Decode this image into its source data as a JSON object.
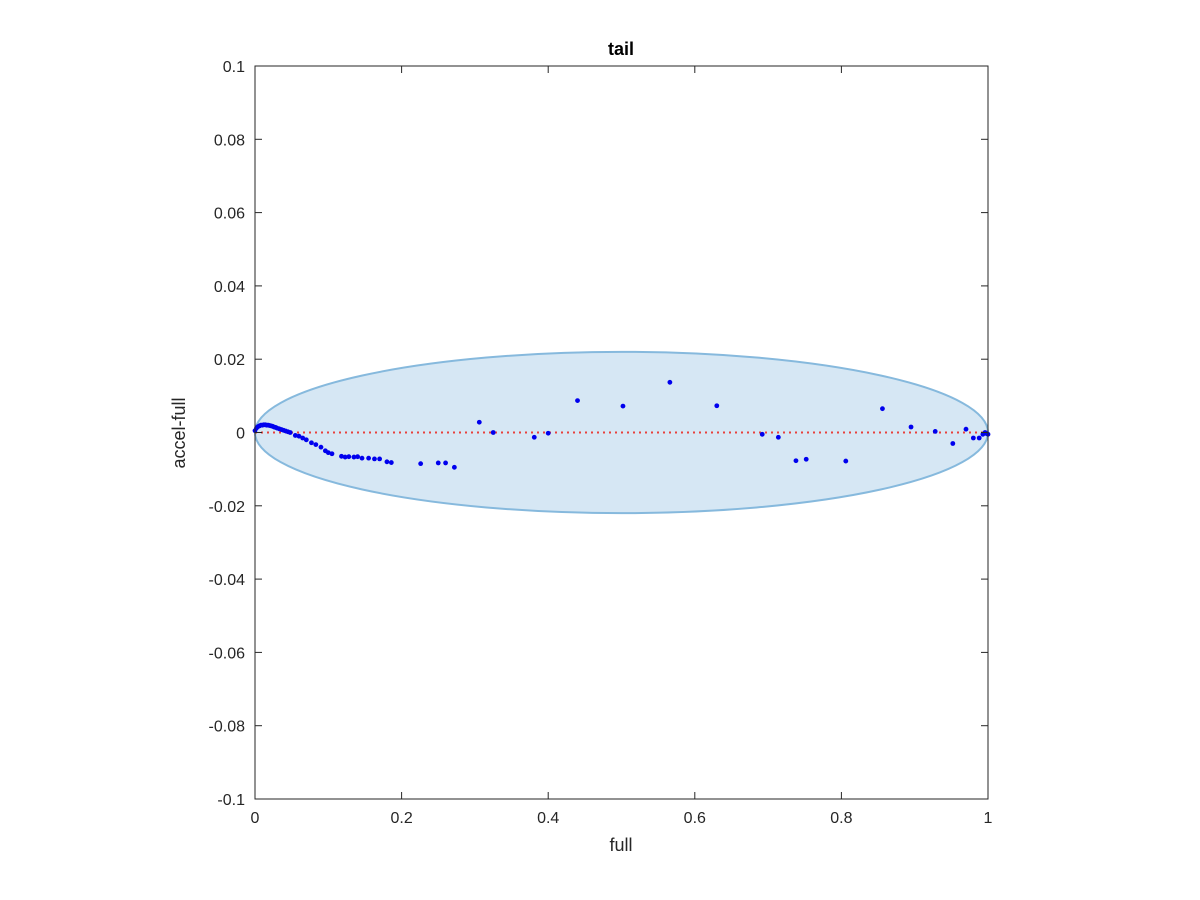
{
  "chart_data": {
    "type": "scatter",
    "title": "tail",
    "xlabel": "full",
    "ylabel": "accel-full",
    "xlim": [
      0,
      1
    ],
    "ylim": [
      -0.1,
      0.1
    ],
    "xticks": [
      0,
      0.2,
      0.4,
      0.6,
      0.8,
      1
    ],
    "xtick_labels": [
      "0",
      "0.2",
      "0.4",
      "0.6",
      "0.8",
      "1"
    ],
    "yticks": [
      -0.1,
      -0.08,
      -0.06,
      -0.04,
      -0.02,
      0,
      0.02,
      0.04,
      0.06,
      0.08,
      0.1
    ],
    "ytick_labels": [
      "-0.1",
      "-0.08",
      "-0.06",
      "-0.04",
      "-0.02",
      "0",
      "0.02",
      "0.04",
      "0.06",
      "0.08",
      "0.1"
    ],
    "grid": false,
    "colors": {
      "points": "#0000ee",
      "reference_line": "#e8413c",
      "ellipse_fill": "#d6e7f4",
      "ellipse_stroke": "#86b9dd",
      "axis": "#262626"
    },
    "reference_line": {
      "y": 0,
      "style": "dotted",
      "x": [
        0,
        1
      ]
    },
    "ellipse": {
      "center": [
        0.5,
        0
      ],
      "semi_axis_x": 0.5,
      "semi_axis_y": 0.022
    },
    "points": [
      {
        "x": 0.0,
        "y": 0.0005
      },
      {
        "x": 0.002,
        "y": 0.0012
      },
      {
        "x": 0.004,
        "y": 0.0016
      },
      {
        "x": 0.006,
        "y": 0.0018
      },
      {
        "x": 0.008,
        "y": 0.002
      },
      {
        "x": 0.01,
        "y": 0.002
      },
      {
        "x": 0.012,
        "y": 0.0021
      },
      {
        "x": 0.014,
        "y": 0.0021
      },
      {
        "x": 0.016,
        "y": 0.002
      },
      {
        "x": 0.018,
        "y": 0.002
      },
      {
        "x": 0.02,
        "y": 0.0019
      },
      {
        "x": 0.022,
        "y": 0.0018
      },
      {
        "x": 0.024,
        "y": 0.0017
      },
      {
        "x": 0.026,
        "y": 0.0015
      },
      {
        "x": 0.028,
        "y": 0.0014
      },
      {
        "x": 0.03,
        "y": 0.0012
      },
      {
        "x": 0.033,
        "y": 0.001
      },
      {
        "x": 0.036,
        "y": 0.0008
      },
      {
        "x": 0.039,
        "y": 0.0006
      },
      {
        "x": 0.042,
        "y": 0.0004
      },
      {
        "x": 0.045,
        "y": 0.0002
      },
      {
        "x": 0.048,
        "y": 0.0
      },
      {
        "x": 0.055,
        "y": -0.0008
      },
      {
        "x": 0.06,
        "y": -0.001
      },
      {
        "x": 0.065,
        "y": -0.0015
      },
      {
        "x": 0.07,
        "y": -0.002
      },
      {
        "x": 0.077,
        "y": -0.0028
      },
      {
        "x": 0.083,
        "y": -0.0033
      },
      {
        "x": 0.09,
        "y": -0.004
      },
      {
        "x": 0.096,
        "y": -0.005
      },
      {
        "x": 0.1,
        "y": -0.0055
      },
      {
        "x": 0.105,
        "y": -0.0058
      },
      {
        "x": 0.118,
        "y": -0.0065
      },
      {
        "x": 0.123,
        "y": -0.0067
      },
      {
        "x": 0.128,
        "y": -0.0066
      },
      {
        "x": 0.135,
        "y": -0.0067
      },
      {
        "x": 0.14,
        "y": -0.0066
      },
      {
        "x": 0.146,
        "y": -0.007
      },
      {
        "x": 0.155,
        "y": -0.007
      },
      {
        "x": 0.163,
        "y": -0.0072
      },
      {
        "x": 0.17,
        "y": -0.0072
      },
      {
        "x": 0.18,
        "y": -0.008
      },
      {
        "x": 0.186,
        "y": -0.0082
      },
      {
        "x": 0.226,
        "y": -0.0085
      },
      {
        "x": 0.25,
        "y": -0.0083
      },
      {
        "x": 0.26,
        "y": -0.0083
      },
      {
        "x": 0.272,
        "y": -0.0095
      },
      {
        "x": 0.306,
        "y": 0.0028
      },
      {
        "x": 0.325,
        "y": 0.0
      },
      {
        "x": 0.381,
        "y": -0.0013
      },
      {
        "x": 0.4,
        "y": -0.0002
      },
      {
        "x": 0.44,
        "y": 0.0087
      },
      {
        "x": 0.502,
        "y": 0.0072
      },
      {
        "x": 0.566,
        "y": 0.0137
      },
      {
        "x": 0.63,
        "y": 0.0073
      },
      {
        "x": 0.692,
        "y": -0.0005
      },
      {
        "x": 0.714,
        "y": -0.0013
      },
      {
        "x": 0.738,
        "y": -0.0077
      },
      {
        "x": 0.752,
        "y": -0.0073
      },
      {
        "x": 0.806,
        "y": -0.0078
      },
      {
        "x": 0.856,
        "y": 0.0065
      },
      {
        "x": 0.895,
        "y": 0.0015
      },
      {
        "x": 0.928,
        "y": 0.0003
      },
      {
        "x": 0.952,
        "y": -0.003
      },
      {
        "x": 0.97,
        "y": 0.0009
      },
      {
        "x": 0.98,
        "y": -0.0015
      },
      {
        "x": 0.988,
        "y": -0.0015
      },
      {
        "x": 0.993,
        "y": -0.0005
      },
      {
        "x": 0.996,
        "y": 0.0
      },
      {
        "x": 0.998,
        "y": -0.0003
      },
      {
        "x": 1.0,
        "y": -0.0005
      }
    ]
  }
}
